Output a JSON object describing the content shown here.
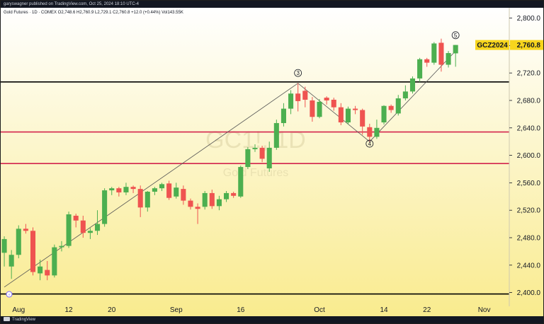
{
  "header": {
    "publish_text": "garyswagner published on TradingView.com, Oct 25, 2024 18:10 UTC-4"
  },
  "footer": {
    "brand": "TradingView"
  },
  "chart_data": {
    "type": "candlestick",
    "legend": "Gold Futures · 1D · COMEX  O2,748.6  H2,760.9  L2,729.1  C2,760.8  +12.0 (+0.44%)  Vol143.55K",
    "watermark": {
      "symbol": "GC1!, 1D",
      "name": "Gold Futures"
    },
    "ticker_label": "GCZ2024",
    "last_price_label": "2,760.8",
    "y_ticks": [
      "2,800.0",
      "2,760.0",
      "2,720.0",
      "2,680.0",
      "2,640.0",
      "2,600.0",
      "2,560.0",
      "2,520.0",
      "2,480.0",
      "2,440.0",
      "2,400.0"
    ],
    "y_tick_values": [
      2800,
      2760,
      2720,
      2680,
      2640,
      2600,
      2560,
      2520,
      2480,
      2440,
      2400
    ],
    "ylim": [
      2380,
      2815
    ],
    "x_tick_labels": [
      {
        "label": "Aug",
        "index": 2
      },
      {
        "label": "12",
        "index": 9
      },
      {
        "label": "20",
        "index": 15
      },
      {
        "label": "Sep",
        "index": 24
      },
      {
        "label": "16",
        "index": 33
      },
      {
        "label": "Oct",
        "index": 44
      },
      {
        "label": "14",
        "index": 53
      },
      {
        "label": "22",
        "index": 59
      },
      {
        "label": "Nov",
        "index": 67
      }
    ],
    "bar_count": 71,
    "candles": [
      {
        "o": 2458,
        "h": 2482,
        "l": 2438,
        "c": 2478
      },
      {
        "o": 2438,
        "h": 2462,
        "l": 2420,
        "c": 2455
      },
      {
        "o": 2455,
        "h": 2498,
        "l": 2450,
        "c": 2493
      },
      {
        "o": 2493,
        "h": 2500,
        "l": 2486,
        "c": 2490
      },
      {
        "o": 2490,
        "h": 2495,
        "l": 2425,
        "c": 2430
      },
      {
        "o": 2428,
        "h": 2448,
        "l": 2418,
        "c": 2438
      },
      {
        "o": 2433,
        "h": 2446,
        "l": 2418,
        "c": 2425
      },
      {
        "o": 2425,
        "h": 2470,
        "l": 2422,
        "c": 2466
      },
      {
        "o": 2466,
        "h": 2475,
        "l": 2460,
        "c": 2468
      },
      {
        "o": 2468,
        "h": 2518,
        "l": 2465,
        "c": 2514
      },
      {
        "o": 2512,
        "h": 2515,
        "l": 2495,
        "c": 2505
      },
      {
        "o": 2505,
        "h": 2512,
        "l": 2480,
        "c": 2487
      },
      {
        "o": 2487,
        "h": 2494,
        "l": 2478,
        "c": 2490
      },
      {
        "o": 2490,
        "h": 2520,
        "l": 2484,
        "c": 2500
      },
      {
        "o": 2500,
        "h": 2552,
        "l": 2496,
        "c": 2549
      },
      {
        "o": 2549,
        "h": 2554,
        "l": 2542,
        "c": 2552
      },
      {
        "o": 2552,
        "h": 2554,
        "l": 2540,
        "c": 2546
      },
      {
        "o": 2546,
        "h": 2560,
        "l": 2542,
        "c": 2554
      },
      {
        "o": 2554,
        "h": 2556,
        "l": 2545,
        "c": 2551
      },
      {
        "o": 2551,
        "h": 2556,
        "l": 2510,
        "c": 2524
      },
      {
        "o": 2524,
        "h": 2548,
        "l": 2518,
        "c": 2547
      },
      {
        "o": 2547,
        "h": 2554,
        "l": 2542,
        "c": 2552
      },
      {
        "o": 2552,
        "h": 2560,
        "l": 2548,
        "c": 2558
      },
      {
        "o": 2559,
        "h": 2563,
        "l": 2535,
        "c": 2538
      },
      {
        "o": 2540,
        "h": 2560,
        "l": 2537,
        "c": 2553
      },
      {
        "o": 2551,
        "h": 2556,
        "l": 2528,
        "c": 2534
      },
      {
        "o": 2534,
        "h": 2537,
        "l": 2521,
        "c": 2525
      },
      {
        "o": 2525,
        "h": 2530,
        "l": 2500,
        "c": 2522
      },
      {
        "o": 2525,
        "h": 2548,
        "l": 2521,
        "c": 2545
      },
      {
        "o": 2545,
        "h": 2550,
        "l": 2522,
        "c": 2526
      },
      {
        "o": 2526,
        "h": 2541,
        "l": 2520,
        "c": 2536
      },
      {
        "o": 2536,
        "h": 2548,
        "l": 2532,
        "c": 2545
      },
      {
        "o": 2545,
        "h": 2547,
        "l": 2538,
        "c": 2541
      },
      {
        "o": 2540,
        "h": 2585,
        "l": 2538,
        "c": 2583
      },
      {
        "o": 2583,
        "h": 2612,
        "l": 2580,
        "c": 2609
      },
      {
        "o": 2609,
        "h": 2616,
        "l": 2605,
        "c": 2611
      },
      {
        "o": 2611,
        "h": 2614,
        "l": 2590,
        "c": 2595
      },
      {
        "o": 2581,
        "h": 2620,
        "l": 2576,
        "c": 2611
      },
      {
        "o": 2611,
        "h": 2652,
        "l": 2608,
        "c": 2647
      },
      {
        "o": 2647,
        "h": 2676,
        "l": 2642,
        "c": 2668
      },
      {
        "o": 2668,
        "h": 2695,
        "l": 2660,
        "c": 2690
      },
      {
        "o": 2690,
        "h": 2705,
        "l": 2664,
        "c": 2679
      },
      {
        "o": 2694,
        "h": 2700,
        "l": 2670,
        "c": 2681
      },
      {
        "o": 2680,
        "h": 2685,
        "l": 2649,
        "c": 2656
      },
      {
        "o": 2656,
        "h": 2682,
        "l": 2654,
        "c": 2678
      },
      {
        "o": 2684,
        "h": 2686,
        "l": 2674,
        "c": 2680
      },
      {
        "o": 2681,
        "h": 2684,
        "l": 2665,
        "c": 2670
      },
      {
        "o": 2670,
        "h": 2676,
        "l": 2644,
        "c": 2648
      },
      {
        "o": 2648,
        "h": 2671,
        "l": 2645,
        "c": 2668
      },
      {
        "o": 2668,
        "h": 2672,
        "l": 2660,
        "c": 2666
      },
      {
        "o": 2666,
        "h": 2668,
        "l": 2630,
        "c": 2642
      },
      {
        "o": 2641,
        "h": 2646,
        "l": 2620,
        "c": 2627
      },
      {
        "o": 2627,
        "h": 2652,
        "l": 2624,
        "c": 2640
      },
      {
        "o": 2648,
        "h": 2673,
        "l": 2645,
        "c": 2672
      },
      {
        "o": 2672,
        "h": 2674,
        "l": 2662,
        "c": 2666
      },
      {
        "o": 2661,
        "h": 2688,
        "l": 2658,
        "c": 2683
      },
      {
        "o": 2683,
        "h": 2702,
        "l": 2680,
        "c": 2693
      },
      {
        "o": 2693,
        "h": 2715,
        "l": 2690,
        "c": 2712
      },
      {
        "o": 2712,
        "h": 2742,
        "l": 2707,
        "c": 2740
      },
      {
        "o": 2740,
        "h": 2742,
        "l": 2729,
        "c": 2735
      },
      {
        "o": 2735,
        "h": 2765,
        "l": 2732,
        "c": 2763
      },
      {
        "o": 2764,
        "h": 2770,
        "l": 2722,
        "c": 2732
      },
      {
        "o": 2732,
        "h": 2752,
        "l": 2728,
        "c": 2749
      },
      {
        "o": 2748.6,
        "h": 2760.9,
        "l": 2729.1,
        "c": 2760.8
      }
    ],
    "horizontal_levels": [
      {
        "price": 2707,
        "color": "#000000"
      },
      {
        "price": 2634,
        "color": "#d3244c"
      },
      {
        "price": 2588,
        "color": "#d3244c"
      },
      {
        "price": 2398,
        "color": "#000000"
      }
    ],
    "waves": [
      {
        "label": "3",
        "index": 41,
        "price": 2720
      },
      {
        "label": "4",
        "index": 51,
        "price": 2617
      },
      {
        "label": "5",
        "index": 63,
        "price": 2775
      }
    ],
    "colors": {
      "up": "#26a69a",
      "down": "#ef5350",
      "up_body": "#4caf50",
      "bg_top": "#ffffff",
      "bg_bottom": "#f9eb8e",
      "ticker_bg": "#f7d51d"
    }
  }
}
